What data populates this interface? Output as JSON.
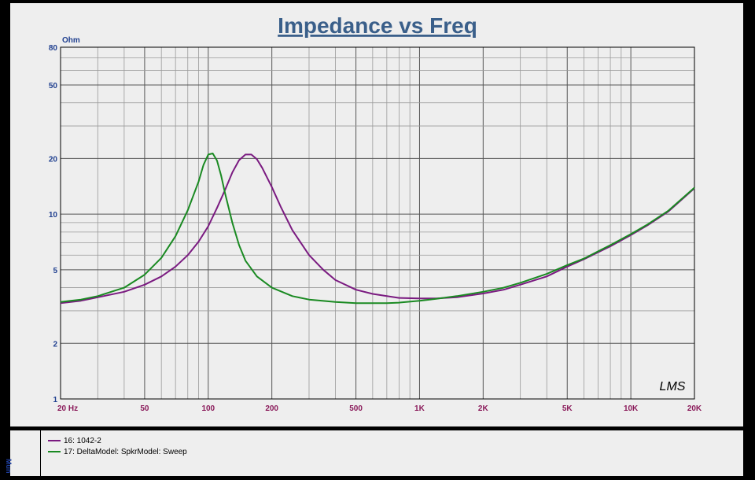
{
  "chart_data": {
    "type": "line",
    "title": "Impedance vs Freq",
    "ylabel": "Ohm",
    "xlabel": "",
    "xscale": "log",
    "yscale": "log",
    "xlim": [
      20,
      20000
    ],
    "ylim": [
      1,
      80
    ],
    "x_ticks": [
      {
        "value": 20,
        "label": "20  Hz"
      },
      {
        "value": 50,
        "label": "50"
      },
      {
        "value": 100,
        "label": "100"
      },
      {
        "value": 200,
        "label": "200"
      },
      {
        "value": 500,
        "label": "500"
      },
      {
        "value": 1000,
        "label": "1K"
      },
      {
        "value": 2000,
        "label": "2K"
      },
      {
        "value": 5000,
        "label": "5K"
      },
      {
        "value": 10000,
        "label": "10K"
      },
      {
        "value": 20000,
        "label": "20K"
      }
    ],
    "y_ticks": [
      {
        "value": 1,
        "label": "1"
      },
      {
        "value": 2,
        "label": "2"
      },
      {
        "value": 5,
        "label": "5"
      },
      {
        "value": 10,
        "label": "10"
      },
      {
        "value": 20,
        "label": "20"
      },
      {
        "value": 50,
        "label": "50"
      },
      {
        "value": 80,
        "label": "80"
      }
    ],
    "grid": true,
    "legend_position": "bottom",
    "watermark": "LMS",
    "series": [
      {
        "name": "16: 1042-2",
        "color": "#7a1a80",
        "x": [
          20,
          25,
          30,
          40,
          50,
          60,
          70,
          80,
          90,
          100,
          110,
          120,
          130,
          140,
          150,
          160,
          170,
          180,
          200,
          220,
          250,
          300,
          350,
          400,
          500,
          600,
          700,
          800,
          1000,
          1200,
          1500,
          2000,
          2500,
          3000,
          4000,
          5000,
          6000,
          8000,
          10000,
          12000,
          15000,
          20000
        ],
        "y": [
          3.3,
          3.4,
          3.55,
          3.8,
          4.15,
          4.6,
          5.2,
          6.0,
          7.1,
          8.6,
          10.8,
          13.5,
          16.8,
          19.6,
          21.0,
          21.0,
          19.8,
          17.8,
          14.0,
          11.0,
          8.2,
          6.0,
          5.0,
          4.4,
          3.9,
          3.7,
          3.6,
          3.52,
          3.5,
          3.5,
          3.55,
          3.72,
          3.9,
          4.15,
          4.6,
          5.2,
          5.7,
          6.7,
          7.7,
          8.7,
          10.3,
          13.8
        ]
      },
      {
        "name": "17: DeltaModel:  SpkrModel:  Sweep",
        "color": "#1a8a22",
        "x": [
          20,
          25,
          30,
          40,
          50,
          60,
          70,
          80,
          90,
          95,
          100,
          105,
          110,
          115,
          120,
          130,
          140,
          150,
          170,
          200,
          250,
          300,
          400,
          500,
          600,
          700,
          800,
          1000,
          1200,
          1500,
          2000,
          2500,
          3000,
          4000,
          5000,
          6000,
          8000,
          10000,
          12000,
          15000,
          20000
        ],
        "y": [
          3.35,
          3.45,
          3.6,
          4.0,
          4.7,
          5.8,
          7.6,
          10.5,
          15.0,
          18.5,
          21.0,
          21.3,
          19.5,
          16.2,
          13.0,
          9.0,
          6.8,
          5.6,
          4.6,
          4.0,
          3.6,
          3.45,
          3.35,
          3.3,
          3.3,
          3.3,
          3.32,
          3.4,
          3.48,
          3.6,
          3.8,
          4.0,
          4.25,
          4.75,
          5.3,
          5.75,
          6.8,
          7.8,
          8.8,
          10.4,
          13.9
        ]
      }
    ]
  },
  "legend_side_label": "Mun"
}
